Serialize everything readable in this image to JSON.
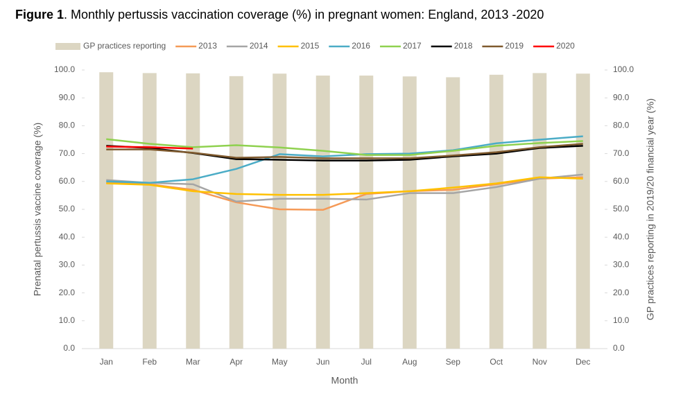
{
  "chart_data": {
    "type": "bar-line",
    "title": [
      "Figure 1",
      ". Monthly pertussis vaccination coverage (%) in pregnant women: England, 2013 -2020"
    ],
    "x_label": "Month",
    "y_label": "Prenatal pertussis vaccine coverage (%)",
    "y2_label": "GP practices reporting in 2019/20 financial year (%)",
    "categories": [
      "Jan",
      "Feb",
      "Mar",
      "Apr",
      "May",
      "Jun",
      "Jul",
      "Aug",
      "Sep",
      "Oct",
      "Nov",
      "Dec"
    ],
    "ylim": [
      0,
      100
    ],
    "yticks": [
      {
        "value": 0,
        "label": "0.0"
      },
      {
        "value": 10,
        "label": "10.0"
      },
      {
        "value": 20,
        "label": "20.0"
      },
      {
        "value": 30,
        "label": "30.0"
      },
      {
        "value": 40,
        "label": "40.0"
      },
      {
        "value": 50,
        "label": "50.0"
      },
      {
        "value": 60,
        "label": "60.0"
      },
      {
        "value": 70,
        "label": "70.0"
      },
      {
        "value": 80,
        "label": "80.0"
      },
      {
        "value": 90,
        "label": "90.0"
      },
      {
        "value": 100,
        "label": "100.0"
      }
    ],
    "y2lim": [
      0,
      100
    ],
    "y2ticks": [
      {
        "value": 0,
        "label": "0.0"
      },
      {
        "value": 10,
        "label": "10.0"
      },
      {
        "value": 20,
        "label": "20.0"
      },
      {
        "value": 30,
        "label": "30.0"
      },
      {
        "value": 40,
        "label": "40.0"
      },
      {
        "value": 50,
        "label": "50.0"
      },
      {
        "value": 60,
        "label": "60.0"
      },
      {
        "value": 70,
        "label": "70.0"
      },
      {
        "value": 80,
        "label": "80.0"
      },
      {
        "value": 90,
        "label": "90.0"
      },
      {
        "value": 100,
        "label": "100.0"
      }
    ],
    "legend": "top",
    "series": [
      {
        "name": "GP practices reporting",
        "type": "bar",
        "axis": "y2",
        "color": "#dcd6c2",
        "values": [
          99.2,
          98.9,
          98.8,
          97.8,
          98.7,
          98.0,
          98.0,
          97.7,
          97.4,
          98.3,
          98.9,
          98.7
        ]
      },
      {
        "name": "2013",
        "type": "line",
        "color": "#f59a57",
        "values": [
          59.5,
          59.0,
          57.0,
          52.5,
          50.0,
          49.8,
          55.5,
          56.5,
          57.0,
          59.0,
          61.0,
          61.5
        ]
      },
      {
        "name": "2014",
        "type": "line",
        "color": "#a5a5a5",
        "values": [
          60.5,
          59.5,
          59.0,
          52.8,
          53.8,
          53.8,
          53.5,
          55.8,
          55.8,
          58.0,
          61.0,
          62.5
        ]
      },
      {
        "name": "2015",
        "type": "line",
        "color": "#ffc000",
        "values": [
          59.3,
          58.8,
          56.5,
          55.5,
          55.2,
          55.2,
          55.8,
          56.5,
          57.8,
          59.3,
          61.5,
          61.0
        ]
      },
      {
        "name": "2016",
        "type": "line",
        "color": "#4bacc6",
        "values": [
          60.0,
          59.5,
          60.8,
          64.5,
          69.8,
          69.0,
          69.8,
          70.0,
          71.2,
          73.7,
          75.0,
          76.2
        ]
      },
      {
        "name": "2017",
        "type": "line",
        "color": "#8fd14f",
        "values": [
          75.2,
          73.5,
          72.3,
          73.0,
          72.2,
          71.0,
          69.5,
          69.5,
          71.0,
          72.8,
          73.8,
          74.5
        ]
      },
      {
        "name": "2018",
        "type": "line",
        "color": "#000000",
        "values": [
          72.8,
          72.0,
          70.2,
          68.0,
          67.8,
          67.5,
          67.5,
          67.8,
          69.0,
          70.0,
          72.0,
          72.8
        ]
      },
      {
        "name": "2019",
        "type": "line",
        "color": "#7f5a2e",
        "values": [
          71.5,
          71.5,
          70.3,
          68.5,
          68.8,
          68.3,
          68.3,
          68.3,
          69.3,
          70.5,
          72.3,
          73.5
        ]
      },
      {
        "name": "2020",
        "type": "line",
        "color": "#ff0000",
        "values": [
          72.5,
          72.3,
          71.8,
          null,
          null,
          null,
          null,
          null,
          null,
          null,
          null,
          null
        ]
      }
    ]
  }
}
